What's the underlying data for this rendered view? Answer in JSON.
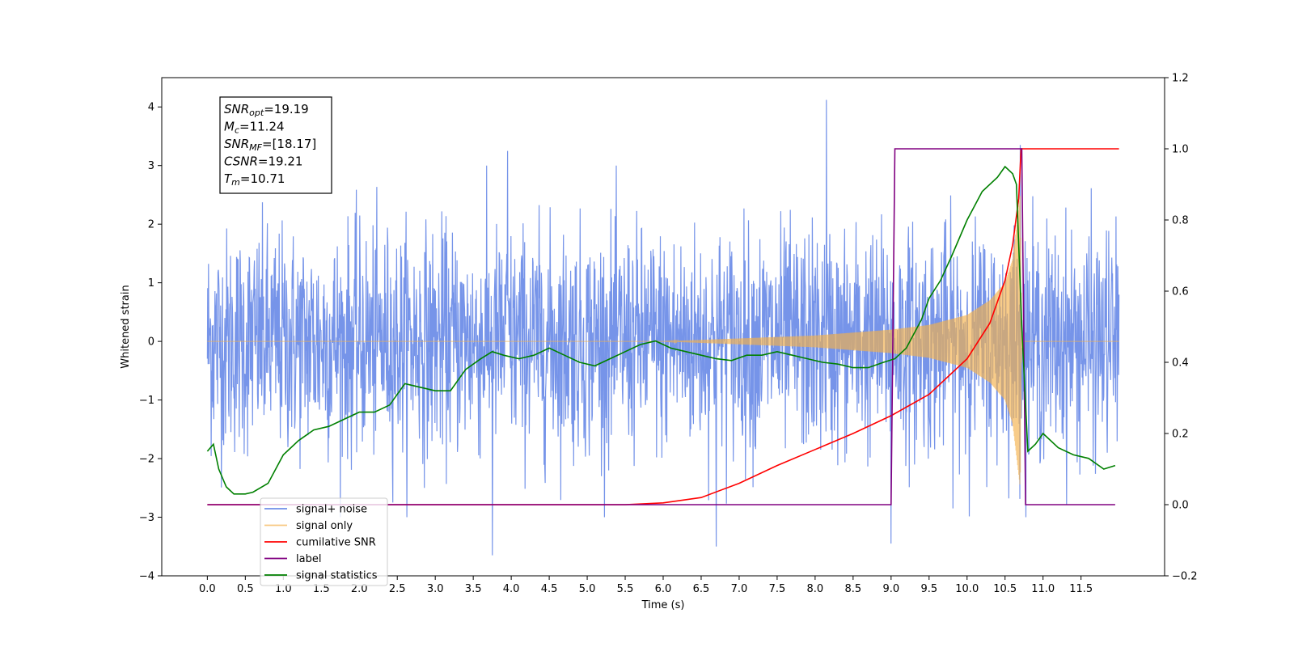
{
  "chart_data": {
    "type": "line",
    "xlabel": "Time (s)",
    "ylabel": "Whitened strain",
    "y2label": "",
    "xlim": [
      -0.6,
      12.6
    ],
    "ylim": [
      -4.0,
      4.5
    ],
    "y2lim": [
      -0.2,
      1.2
    ],
    "x_ticks": [
      "0.0",
      "0.5",
      "1.0",
      "1.5",
      "2.0",
      "2.5",
      "3.0",
      "3.5",
      "4.0",
      "4.5",
      "5.0",
      "5.5",
      "6.0",
      "6.5",
      "7.0",
      "7.5",
      "8.0",
      "8.5",
      "9.0",
      "9.5",
      "10.0",
      "10.5",
      "11.0",
      "11.5"
    ],
    "y_ticks": [
      "4",
      "3",
      "2",
      "1",
      "0",
      "−1",
      "−2",
      "−3",
      "−4"
    ],
    "y2_ticks": [
      "1.2",
      "1.0",
      "0.8",
      "0.6",
      "0.4",
      "0.2",
      "0.0",
      "−0.2"
    ],
    "grid": false,
    "legend_position": "lower-left",
    "annotations": [
      {
        "name": "SNR",
        "sub": "opt",
        "value": "=19.19"
      },
      {
        "name": "M",
        "sub": "c",
        "value": "=11.24"
      },
      {
        "name": "SNR",
        "sub": "MF",
        "value": "=[18.17]"
      },
      {
        "name": "CSNR",
        "sub": "",
        "value": "=19.21"
      },
      {
        "name": "T",
        "sub": "m",
        "value": "=10.71"
      }
    ],
    "series": [
      {
        "name": "signal+ noise",
        "axis": "left",
        "color": "#6f8ee8",
        "x_range": [
          0.0,
          12.0
        ],
        "y_range_typical": [
          -2.3,
          2.3
        ],
        "peaks": [
          [
            8.15,
            4.12
          ],
          [
            3.95,
            3.25
          ],
          [
            10.7,
            3.35
          ],
          [
            3.75,
            -3.65
          ],
          [
            6.7,
            -3.5
          ],
          [
            9.0,
            -3.45
          ]
        ]
      },
      {
        "name": "signal only",
        "axis": "left",
        "color": "#f5b04a",
        "x_range": [
          0.0,
          12.0
        ],
        "envelope": {
          "x": [
            0.0,
            6.0,
            7.0,
            8.0,
            9.0,
            9.5,
            10.0,
            10.3,
            10.5,
            10.6,
            10.7,
            10.72
          ],
          "amplitude": [
            0.0,
            0.0,
            0.05,
            0.1,
            0.2,
            0.28,
            0.45,
            0.7,
            1.0,
            1.4,
            2.5,
            0.0
          ]
        }
      },
      {
        "name": "cumilative SNR",
        "axis": "right",
        "color": "#ff0000",
        "x": [
          0.0,
          5.5,
          6.0,
          6.5,
          7.0,
          7.5,
          8.0,
          8.5,
          9.0,
          9.5,
          10.0,
          10.3,
          10.5,
          10.6,
          10.68,
          10.71,
          11.0,
          12.0
        ],
        "y": [
          0.0,
          0.0,
          0.005,
          0.02,
          0.06,
          0.11,
          0.155,
          0.2,
          0.25,
          0.31,
          0.41,
          0.51,
          0.63,
          0.73,
          0.86,
          1.0,
          1.0,
          1.0
        ]
      },
      {
        "name": "label",
        "axis": "right",
        "color": "#800080",
        "x": [
          0.0,
          9.0,
          9.05,
          10.72,
          10.77,
          11.95
        ],
        "y": [
          0.0,
          0.0,
          1.0,
          1.0,
          0.0,
          0.0
        ]
      },
      {
        "name": "signal statistics",
        "axis": "right",
        "color": "#008000",
        "x": [
          0.0,
          0.08,
          0.15,
          0.25,
          0.35,
          0.5,
          0.6,
          0.8,
          1.0,
          1.2,
          1.4,
          1.6,
          1.8,
          2.0,
          2.2,
          2.4,
          2.6,
          2.8,
          3.0,
          3.2,
          3.4,
          3.6,
          3.75,
          3.9,
          4.1,
          4.3,
          4.5,
          4.7,
          4.9,
          5.1,
          5.3,
          5.5,
          5.7,
          5.9,
          6.1,
          6.3,
          6.5,
          6.7,
          6.9,
          7.1,
          7.3,
          7.5,
          7.7,
          7.9,
          8.1,
          8.3,
          8.5,
          8.7,
          8.9,
          9.05,
          9.2,
          9.4,
          9.5,
          9.65,
          9.8,
          10.0,
          10.2,
          10.4,
          10.5,
          10.6,
          10.65,
          10.72,
          10.8,
          10.9,
          11.0,
          11.2,
          11.4,
          11.6,
          11.8,
          11.95
        ],
        "y": [
          0.15,
          0.17,
          0.1,
          0.05,
          0.03,
          0.03,
          0.035,
          0.06,
          0.14,
          0.18,
          0.21,
          0.22,
          0.24,
          0.26,
          0.26,
          0.28,
          0.34,
          0.33,
          0.32,
          0.32,
          0.38,
          0.41,
          0.43,
          0.42,
          0.41,
          0.42,
          0.44,
          0.42,
          0.4,
          0.39,
          0.41,
          0.43,
          0.45,
          0.46,
          0.44,
          0.43,
          0.42,
          0.41,
          0.405,
          0.42,
          0.42,
          0.43,
          0.42,
          0.41,
          0.4,
          0.395,
          0.385,
          0.385,
          0.4,
          0.41,
          0.44,
          0.52,
          0.58,
          0.63,
          0.7,
          0.8,
          0.88,
          0.92,
          0.95,
          0.93,
          0.9,
          0.5,
          0.15,
          0.17,
          0.2,
          0.16,
          0.14,
          0.13,
          0.1,
          0.11
        ]
      }
    ]
  }
}
